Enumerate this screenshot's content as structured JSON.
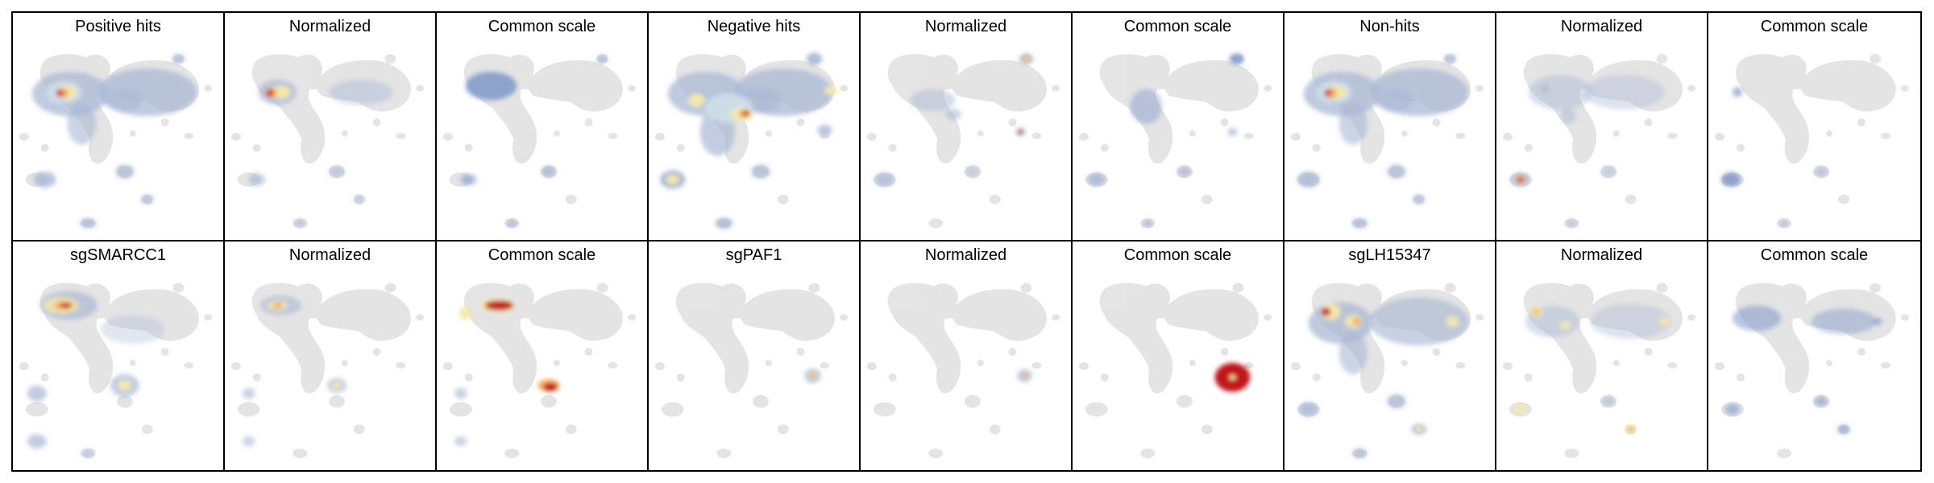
{
  "figure": {
    "rows": [
      {
        "panels": [
          {
            "title": "Positive hits",
            "variant": "a-hits"
          },
          {
            "title": "Normalized",
            "variant": "a-norm"
          },
          {
            "title": "Common scale",
            "variant": "a-common"
          },
          {
            "title": "Negative hits",
            "variant": "b-hits"
          },
          {
            "title": "Normalized",
            "variant": "b-norm"
          },
          {
            "title": "Common scale",
            "variant": "b-common"
          },
          {
            "title": "Non-hits",
            "variant": "c-hits"
          },
          {
            "title": "Normalized",
            "variant": "c-norm"
          },
          {
            "title": "Common scale",
            "variant": "c-common"
          }
        ]
      },
      {
        "panels": [
          {
            "title": "sgSMARCC1",
            "variant": "d-hits"
          },
          {
            "title": "Normalized",
            "variant": "d-norm"
          },
          {
            "title": "Common scale",
            "variant": "d-common"
          },
          {
            "title": "sgPAF1",
            "variant": "e-hits"
          },
          {
            "title": "Normalized",
            "variant": "e-norm"
          },
          {
            "title": "Common scale",
            "variant": "e-common"
          },
          {
            "title": "sgLH15347",
            "variant": "f-hits"
          },
          {
            "title": "Normalized",
            "variant": "f-norm"
          },
          {
            "title": "Common scale",
            "variant": "f-common"
          }
        ]
      }
    ],
    "colors": {
      "background_cells": "#e0e0e0",
      "low": "#a9b8d4",
      "mid_low": "#cfe0ea",
      "mid": "#f3e9a8",
      "high": "#f2a04d",
      "max": "#c0141c",
      "common_blue": "#7f97c8"
    }
  }
}
